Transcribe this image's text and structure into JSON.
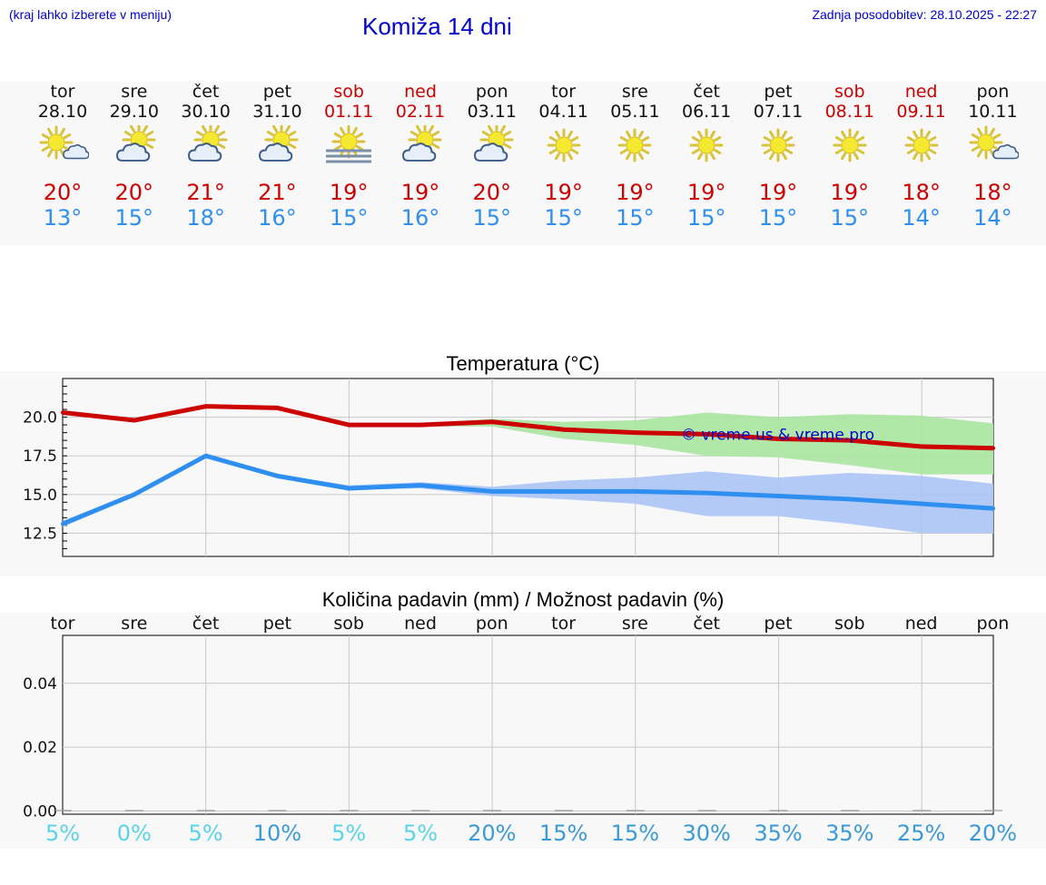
{
  "header": {
    "hint": "(kraj lahko izberete v meniju)",
    "title": "Komiža 14 dni",
    "updated": "Zadnja posodobitev: 28.10.2025 - 22:27"
  },
  "colors": {
    "link": "#0000cc",
    "max": "#cc0000",
    "min": "#2e8ff0",
    "max_band": "#a8e6a0",
    "min_band": "#aac4f4",
    "pct_low": "#5ad3e8",
    "pct_high": "#3a9ad8"
  },
  "days": [
    {
      "name": "tor",
      "date": "28.10",
      "icon": "sun-cloud-icon",
      "weekend": false,
      "max": "20°",
      "min": "13°",
      "pct": "5%"
    },
    {
      "name": "sre",
      "date": "29.10",
      "icon": "cloud-sun-icon",
      "weekend": false,
      "max": "20°",
      "min": "15°",
      "pct": "0%"
    },
    {
      "name": "čet",
      "date": "30.10",
      "icon": "cloud-sun-icon",
      "weekend": false,
      "max": "21°",
      "min": "18°",
      "pct": "5%"
    },
    {
      "name": "pet",
      "date": "31.10",
      "icon": "cloud-sun-icon",
      "weekend": false,
      "max": "21°",
      "min": "16°",
      "pct": "10%"
    },
    {
      "name": "sob",
      "date": "01.11",
      "icon": "sun-fog-icon",
      "weekend": true,
      "max": "19°",
      "min": "15°",
      "pct": "5%"
    },
    {
      "name": "ned",
      "date": "02.11",
      "icon": "cloud-sun-icon",
      "weekend": true,
      "max": "19°",
      "min": "16°",
      "pct": "5%"
    },
    {
      "name": "pon",
      "date": "03.11",
      "icon": "cloud-sun-icon",
      "weekend": false,
      "max": "20°",
      "min": "15°",
      "pct": "20%"
    },
    {
      "name": "tor",
      "date": "04.11",
      "icon": "sun-icon",
      "weekend": false,
      "max": "19°",
      "min": "15°",
      "pct": "15%"
    },
    {
      "name": "sre",
      "date": "05.11",
      "icon": "sun-icon",
      "weekend": false,
      "max": "19°",
      "min": "15°",
      "pct": "15%"
    },
    {
      "name": "čet",
      "date": "06.11",
      "icon": "sun-icon",
      "weekend": false,
      "max": "19°",
      "min": "15°",
      "pct": "30%"
    },
    {
      "name": "pet",
      "date": "07.11",
      "icon": "sun-icon",
      "weekend": false,
      "max": "19°",
      "min": "15°",
      "pct": "35%"
    },
    {
      "name": "sob",
      "date": "08.11",
      "icon": "sun-icon",
      "weekend": true,
      "max": "19°",
      "min": "15°",
      "pct": "35%"
    },
    {
      "name": "ned",
      "date": "09.11",
      "icon": "sun-icon",
      "weekend": true,
      "max": "18°",
      "min": "14°",
      "pct": "25%"
    },
    {
      "name": "pon",
      "date": "10.11",
      "icon": "sun-cloud-icon",
      "weekend": false,
      "max": "18°",
      "min": "14°",
      "pct": "20%"
    }
  ],
  "chart_data": [
    {
      "type": "line",
      "title": "Temperatura (°C)",
      "watermark": "© vreme.us & vreme.pro",
      "x": [
        0,
        1,
        2,
        3,
        4,
        5,
        6,
        7,
        8,
        9,
        10,
        11,
        12,
        13
      ],
      "yticks": [
        "20.0",
        "17.5",
        "15.0",
        "12.5"
      ],
      "ytick_values": [
        20.0,
        17.5,
        15.0,
        12.5
      ],
      "ylim": [
        11.0,
        22.5
      ],
      "series": [
        {
          "name": "max",
          "values": [
            20.3,
            19.8,
            20.7,
            20.6,
            19.5,
            19.5,
            19.7,
            19.2,
            19.0,
            18.9,
            18.6,
            18.5,
            18.1,
            18.0
          ],
          "band_low": [
            20.2,
            19.7,
            20.6,
            20.5,
            19.4,
            19.4,
            19.4,
            18.6,
            18.2,
            17.5,
            17.4,
            16.9,
            16.3,
            16.3
          ],
          "band_high": [
            20.4,
            19.9,
            20.8,
            20.7,
            19.6,
            19.6,
            19.9,
            19.7,
            19.8,
            20.3,
            20.0,
            20.2,
            20.1,
            19.6
          ]
        },
        {
          "name": "min",
          "values": [
            13.1,
            15.0,
            17.5,
            16.2,
            15.4,
            15.6,
            15.2,
            15.2,
            15.2,
            15.1,
            14.9,
            14.7,
            14.4,
            14.1
          ],
          "band_low": [
            12.9,
            14.9,
            17.4,
            16.1,
            15.3,
            15.4,
            14.9,
            14.7,
            14.4,
            13.6,
            13.6,
            13.1,
            12.5,
            12.5
          ],
          "band_high": [
            13.3,
            15.1,
            17.6,
            16.3,
            15.6,
            15.8,
            15.5,
            15.9,
            16.1,
            16.5,
            16.1,
            16.4,
            16.2,
            15.7
          ]
        }
      ]
    },
    {
      "type": "bar",
      "title": "Količina padavin (mm) / Možnost padavin (%)",
      "categories": [
        "tor",
        "sre",
        "čet",
        "pet",
        "sob",
        "ned",
        "pon",
        "tor",
        "sre",
        "čet",
        "pet",
        "sob",
        "ned",
        "pon"
      ],
      "values": [
        0,
        0,
        0,
        0,
        0,
        0,
        0,
        0,
        0,
        0,
        0,
        0,
        0,
        0
      ],
      "yticks": [
        "0.04",
        "0.02",
        "0.00"
      ],
      "ytick_values": [
        0.04,
        0.02,
        0.0
      ],
      "ylim": [
        -0.001,
        0.055
      ],
      "chance_pct": [
        5,
        0,
        5,
        10,
        5,
        5,
        20,
        15,
        15,
        30,
        35,
        35,
        25,
        20
      ]
    }
  ]
}
